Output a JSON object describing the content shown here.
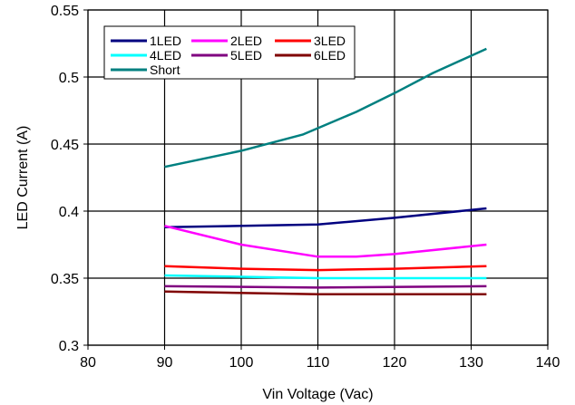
{
  "chart_data": {
    "type": "line",
    "title": "",
    "xlabel": "Vin Voltage (Vac)",
    "ylabel": "LED Current (A)",
    "xlim": [
      80,
      140
    ],
    "ylim": [
      0.3,
      0.55
    ],
    "xticks": [
      "80",
      "90",
      "100",
      "110",
      "120",
      "130",
      "140"
    ],
    "yticks": [
      "0.3",
      "0.35",
      "0.4",
      "0.45",
      "0.5",
      "0.55"
    ],
    "grid": true,
    "legend_position": "top-left",
    "series": [
      {
        "name": "1LED",
        "color": "#000080",
        "x": [
          90,
          110,
          120,
          132
        ],
        "y": [
          0.388,
          0.39,
          0.395,
          0.402
        ]
      },
      {
        "name": "2LED",
        "color": "#ff00ff",
        "x": [
          90,
          100,
          110,
          115,
          120,
          132
        ],
        "y": [
          0.389,
          0.375,
          0.366,
          0.366,
          0.368,
          0.375
        ]
      },
      {
        "name": "3LED",
        "color": "#ff0000",
        "x": [
          90,
          100,
          110,
          120,
          132
        ],
        "y": [
          0.359,
          0.357,
          0.356,
          0.357,
          0.359
        ]
      },
      {
        "name": "4LED",
        "color": "#00ffff",
        "x": [
          90,
          110,
          132
        ],
        "y": [
          0.352,
          0.35,
          0.35
        ]
      },
      {
        "name": "5LED",
        "color": "#800080",
        "x": [
          90,
          110,
          132
        ],
        "y": [
          0.344,
          0.343,
          0.344
        ]
      },
      {
        "name": "6LED",
        "color": "#800000",
        "x": [
          90,
          110,
          132
        ],
        "y": [
          0.34,
          0.338,
          0.338
        ]
      },
      {
        "name": "Short",
        "color": "#008080",
        "x": [
          90,
          100,
          108,
          115,
          120,
          125,
          132
        ],
        "y": [
          0.433,
          0.445,
          0.457,
          0.474,
          0.488,
          0.503,
          0.521
        ]
      }
    ]
  }
}
